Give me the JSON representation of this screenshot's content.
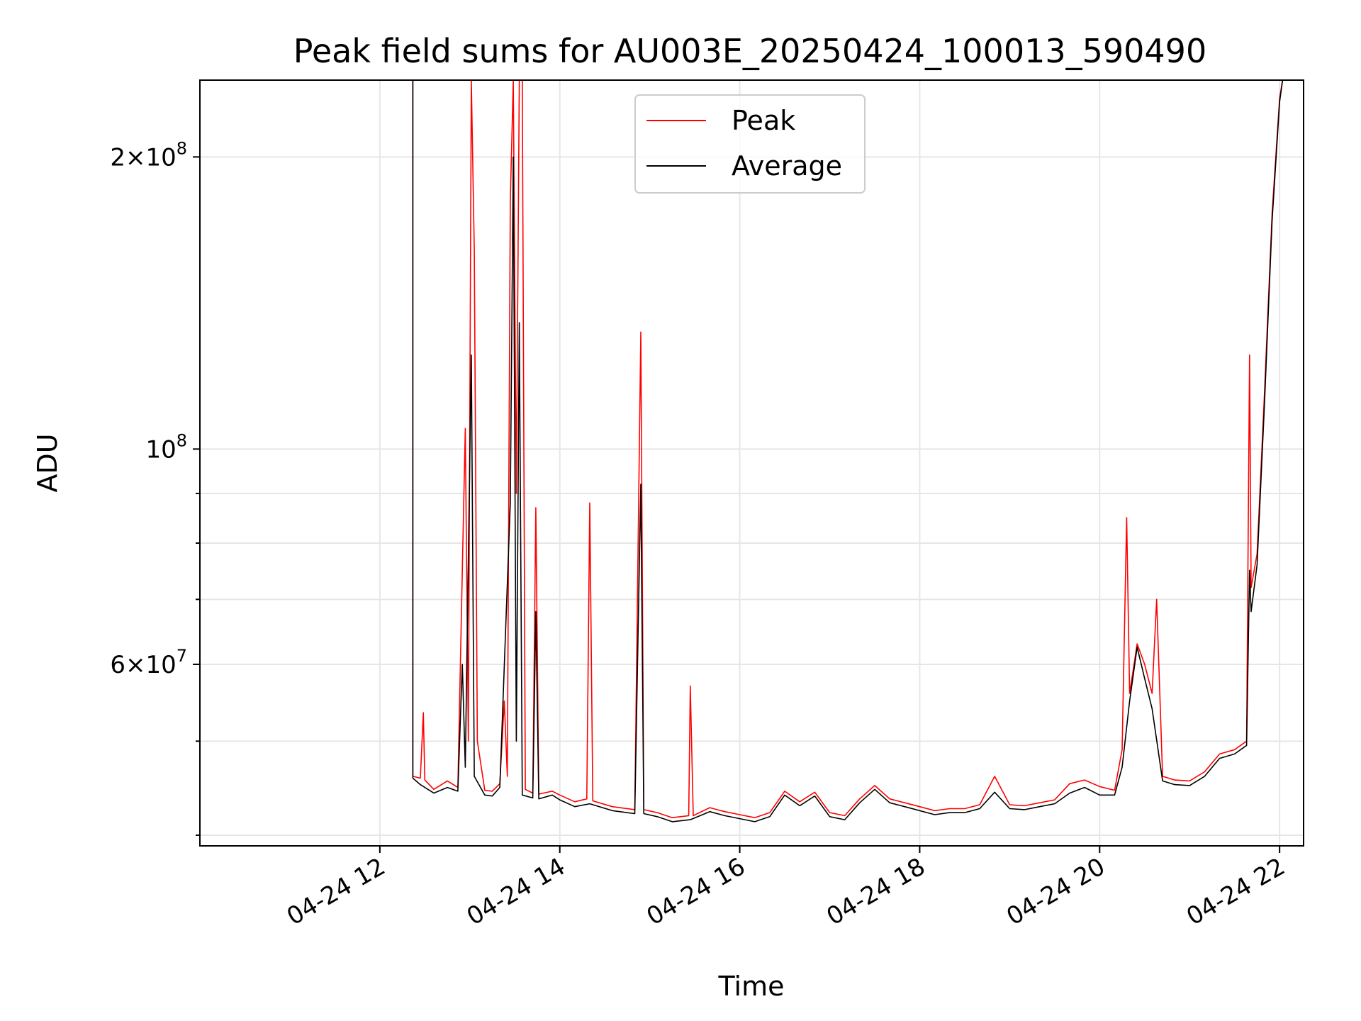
{
  "chart_data": {
    "type": "line",
    "title": "Peak field sums for AU003E_20250424_100013_590490",
    "xlabel": "Time",
    "ylabel": "ADU",
    "yscale": "log",
    "ylim": [
      39000000,
      240000000
    ],
    "xlim": [
      "2025-04-24 10:00",
      "2025-04-24 22:16"
    ],
    "grid": true,
    "legend_position": "top-center",
    "x_ticks": [
      {
        "x": "2025-04-24 12:00",
        "label": "04-24 12"
      },
      {
        "x": "2025-04-24 14:00",
        "label": "04-24 14"
      },
      {
        "x": "2025-04-24 16:00",
        "label": "04-24 16"
      },
      {
        "x": "2025-04-24 18:00",
        "label": "04-24 18"
      },
      {
        "x": "2025-04-24 20:00",
        "label": "04-24 20"
      },
      {
        "x": "2025-04-24 22:00",
        "label": "04-24 22"
      }
    ],
    "y_ticks": [
      {
        "y": 60000000,
        "mantissa": "6",
        "exponent": "7"
      },
      {
        "y": 100000000,
        "mantissa": "",
        "exponent": "8"
      },
      {
        "y": 200000000,
        "mantissa": "2",
        "exponent": "8"
      }
    ],
    "y_minor_ticks": [
      40000000,
      50000000,
      70000000,
      80000000,
      90000000,
      300000000
    ],
    "series": [
      {
        "name": "Peak",
        "color": "#ff0000",
        "points": [
          [
            "2025-04-24 10:00",
            240000000
          ],
          [
            "2025-04-24 12:22",
            240000000
          ],
          [
            "2025-04-24 12:22",
            46000000
          ],
          [
            "2025-04-24 12:27",
            45800000
          ],
          [
            "2025-04-24 12:29",
            53500000
          ],
          [
            "2025-04-24 12:30",
            45600000
          ],
          [
            "2025-04-24 12:36",
            44600000
          ],
          [
            "2025-04-24 12:45",
            45500000
          ],
          [
            "2025-04-24 12:52",
            44800000
          ],
          [
            "2025-04-24 12:55",
            75000000
          ],
          [
            "2025-04-24 12:57",
            105000000
          ],
          [
            "2025-04-24 12:59",
            50000000
          ],
          [
            "2025-04-24 13:01",
            240000000
          ],
          [
            "2025-04-24 13:03",
            160000000
          ],
          [
            "2025-04-24 13:05",
            50000000
          ],
          [
            "2025-04-24 13:10",
            44500000
          ],
          [
            "2025-04-24 13:15",
            44400000
          ],
          [
            "2025-04-24 13:20",
            45200000
          ],
          [
            "2025-04-24 13:23",
            55000000
          ],
          [
            "2025-04-24 13:25",
            46000000
          ],
          [
            "2025-04-24 13:27",
            180000000
          ],
          [
            "2025-04-24 13:29",
            240000000
          ],
          [
            "2025-04-24 13:31",
            90000000
          ],
          [
            "2025-04-24 13:33",
            240000000
          ],
          [
            "2025-04-24 13:35",
            240000000
          ],
          [
            "2025-04-24 13:37",
            44600000
          ],
          [
            "2025-04-24 13:42",
            44200000
          ],
          [
            "2025-04-24 13:44",
            87000000
          ],
          [
            "2025-04-24 13:46",
            44100000
          ],
          [
            "2025-04-24 13:55",
            44400000
          ],
          [
            "2025-04-24 14:00",
            44000000
          ],
          [
            "2025-04-24 14:10",
            43300000
          ],
          [
            "2025-04-24 14:18",
            43600000
          ],
          [
            "2025-04-24 14:20",
            88000000
          ],
          [
            "2025-04-24 14:22",
            43400000
          ],
          [
            "2025-04-24 14:35",
            42800000
          ],
          [
            "2025-04-24 14:50",
            42500000
          ],
          [
            "2025-04-24 14:54",
            132000000
          ],
          [
            "2025-04-24 14:56",
            42500000
          ],
          [
            "2025-04-24 15:05",
            42200000
          ],
          [
            "2025-04-24 15:15",
            41700000
          ],
          [
            "2025-04-24 15:26",
            41900000
          ],
          [
            "2025-04-24 15:27",
            57000000
          ],
          [
            "2025-04-24 15:29",
            41900000
          ],
          [
            "2025-04-24 15:40",
            42700000
          ],
          [
            "2025-04-24 15:50",
            42300000
          ],
          [
            "2025-04-24 16:00",
            42000000
          ],
          [
            "2025-04-24 16:10",
            41700000
          ],
          [
            "2025-04-24 16:20",
            42200000
          ],
          [
            "2025-04-24 16:30",
            44400000
          ],
          [
            "2025-04-24 16:40",
            43300000
          ],
          [
            "2025-04-24 16:50",
            44300000
          ],
          [
            "2025-04-24 17:00",
            42200000
          ],
          [
            "2025-04-24 17:10",
            41900000
          ],
          [
            "2025-04-24 17:20",
            43600000
          ],
          [
            "2025-04-24 17:30",
            45000000
          ],
          [
            "2025-04-24 17:40",
            43600000
          ],
          [
            "2025-04-24 17:50",
            43200000
          ],
          [
            "2025-04-24 18:00",
            42800000
          ],
          [
            "2025-04-24 18:10",
            42400000
          ],
          [
            "2025-04-24 18:20",
            42600000
          ],
          [
            "2025-04-24 18:30",
            42600000
          ],
          [
            "2025-04-24 18:40",
            43000000
          ],
          [
            "2025-04-24 18:50",
            46000000
          ],
          [
            "2025-04-24 19:00",
            43000000
          ],
          [
            "2025-04-24 19:10",
            42900000
          ],
          [
            "2025-04-24 19:20",
            43200000
          ],
          [
            "2025-04-24 19:30",
            43500000
          ],
          [
            "2025-04-24 19:40",
            45200000
          ],
          [
            "2025-04-24 19:50",
            45600000
          ],
          [
            "2025-04-24 20:00",
            44900000
          ],
          [
            "2025-04-24 20:10",
            44500000
          ],
          [
            "2025-04-24 20:15",
            49000000
          ],
          [
            "2025-04-24 20:18",
            85000000
          ],
          [
            "2025-04-24 20:20",
            56000000
          ],
          [
            "2025-04-24 20:25",
            63000000
          ],
          [
            "2025-04-24 20:30",
            60000000
          ],
          [
            "2025-04-24 20:35",
            56000000
          ],
          [
            "2025-04-24 20:38",
            70000000
          ],
          [
            "2025-04-24 20:42",
            46000000
          ],
          [
            "2025-04-24 20:50",
            45600000
          ],
          [
            "2025-04-24 21:00",
            45500000
          ],
          [
            "2025-04-24 21:10",
            46500000
          ],
          [
            "2025-04-24 21:20",
            48500000
          ],
          [
            "2025-04-24 21:30",
            49000000
          ],
          [
            "2025-04-24 21:38",
            50000000
          ],
          [
            "2025-04-24 21:40",
            125000000
          ],
          [
            "2025-04-24 21:41",
            72000000
          ],
          [
            "2025-04-24 21:45",
            78000000
          ],
          [
            "2025-04-24 21:50",
            115000000
          ],
          [
            "2025-04-24 21:55",
            175000000
          ],
          [
            "2025-04-24 22:00",
            230000000
          ],
          [
            "2025-04-24 22:02",
            240000000
          ]
        ]
      },
      {
        "name": "Average",
        "color": "#000000",
        "points": [
          [
            "2025-04-24 10:00",
            240000000
          ],
          [
            "2025-04-24 12:22",
            240000000
          ],
          [
            "2025-04-24 12:22",
            45800000
          ],
          [
            "2025-04-24 12:27",
            45100000
          ],
          [
            "2025-04-24 12:36",
            44200000
          ],
          [
            "2025-04-24 12:45",
            44800000
          ],
          [
            "2025-04-24 12:52",
            44400000
          ],
          [
            "2025-04-24 12:55",
            60000000
          ],
          [
            "2025-04-24 12:57",
            47000000
          ],
          [
            "2025-04-24 13:01",
            125000000
          ],
          [
            "2025-04-24 13:03",
            46000000
          ],
          [
            "2025-04-24 13:10",
            44000000
          ],
          [
            "2025-04-24 13:15",
            43900000
          ],
          [
            "2025-04-24 13:20",
            44800000
          ],
          [
            "2025-04-24 13:27",
            88000000
          ],
          [
            "2025-04-24 13:29",
            200000000
          ],
          [
            "2025-04-24 13:31",
            50000000
          ],
          [
            "2025-04-24 13:33",
            135000000
          ],
          [
            "2025-04-24 13:35",
            44000000
          ],
          [
            "2025-04-24 13:42",
            43700000
          ],
          [
            "2025-04-24 13:44",
            68000000
          ],
          [
            "2025-04-24 13:46",
            43600000
          ],
          [
            "2025-04-24 13:55",
            44000000
          ],
          [
            "2025-04-24 14:00",
            43500000
          ],
          [
            "2025-04-24 14:10",
            42800000
          ],
          [
            "2025-04-24 14:20",
            43100000
          ],
          [
            "2025-04-24 14:35",
            42400000
          ],
          [
            "2025-04-24 14:50",
            42100000
          ],
          [
            "2025-04-24 14:54",
            92000000
          ],
          [
            "2025-04-24 14:56",
            42100000
          ],
          [
            "2025-04-24 15:05",
            41800000
          ],
          [
            "2025-04-24 15:15",
            41300000
          ],
          [
            "2025-04-24 15:27",
            41500000
          ],
          [
            "2025-04-24 15:40",
            42300000
          ],
          [
            "2025-04-24 15:50",
            41900000
          ],
          [
            "2025-04-24 16:00",
            41600000
          ],
          [
            "2025-04-24 16:10",
            41300000
          ],
          [
            "2025-04-24 16:20",
            41800000
          ],
          [
            "2025-04-24 16:30",
            44000000
          ],
          [
            "2025-04-24 16:40",
            42900000
          ],
          [
            "2025-04-24 16:50",
            43900000
          ],
          [
            "2025-04-24 17:00",
            41800000
          ],
          [
            "2025-04-24 17:10",
            41500000
          ],
          [
            "2025-04-24 17:20",
            43200000
          ],
          [
            "2025-04-24 17:30",
            44600000
          ],
          [
            "2025-04-24 17:40",
            43200000
          ],
          [
            "2025-04-24 17:50",
            42800000
          ],
          [
            "2025-04-24 18:00",
            42400000
          ],
          [
            "2025-04-24 18:10",
            42000000
          ],
          [
            "2025-04-24 18:20",
            42200000
          ],
          [
            "2025-04-24 18:30",
            42200000
          ],
          [
            "2025-04-24 18:40",
            42600000
          ],
          [
            "2025-04-24 18:50",
            44300000
          ],
          [
            "2025-04-24 19:00",
            42600000
          ],
          [
            "2025-04-24 19:10",
            42500000
          ],
          [
            "2025-04-24 19:20",
            42800000
          ],
          [
            "2025-04-24 19:30",
            43100000
          ],
          [
            "2025-04-24 19:40",
            44200000
          ],
          [
            "2025-04-24 19:50",
            44800000
          ],
          [
            "2025-04-24 20:00",
            44000000
          ],
          [
            "2025-04-24 20:10",
            44000000
          ],
          [
            "2025-04-24 20:15",
            47000000
          ],
          [
            "2025-04-24 20:20",
            55000000
          ],
          [
            "2025-04-24 20:25",
            62500000
          ],
          [
            "2025-04-24 20:30",
            58000000
          ],
          [
            "2025-04-24 20:35",
            54000000
          ],
          [
            "2025-04-24 20:42",
            45500000
          ],
          [
            "2025-04-24 20:50",
            45100000
          ],
          [
            "2025-04-24 21:00",
            45000000
          ],
          [
            "2025-04-24 21:10",
            46000000
          ],
          [
            "2025-04-24 21:20",
            48000000
          ],
          [
            "2025-04-24 21:30",
            48500000
          ],
          [
            "2025-04-24 21:38",
            49500000
          ],
          [
            "2025-04-24 21:40",
            75000000
          ],
          [
            "2025-04-24 21:41",
            68000000
          ],
          [
            "2025-04-24 21:45",
            76000000
          ],
          [
            "2025-04-24 21:50",
            112000000
          ],
          [
            "2025-04-24 21:55",
            172000000
          ],
          [
            "2025-04-24 22:00",
            228000000
          ],
          [
            "2025-04-24 22:02",
            240000000
          ]
        ]
      }
    ]
  }
}
